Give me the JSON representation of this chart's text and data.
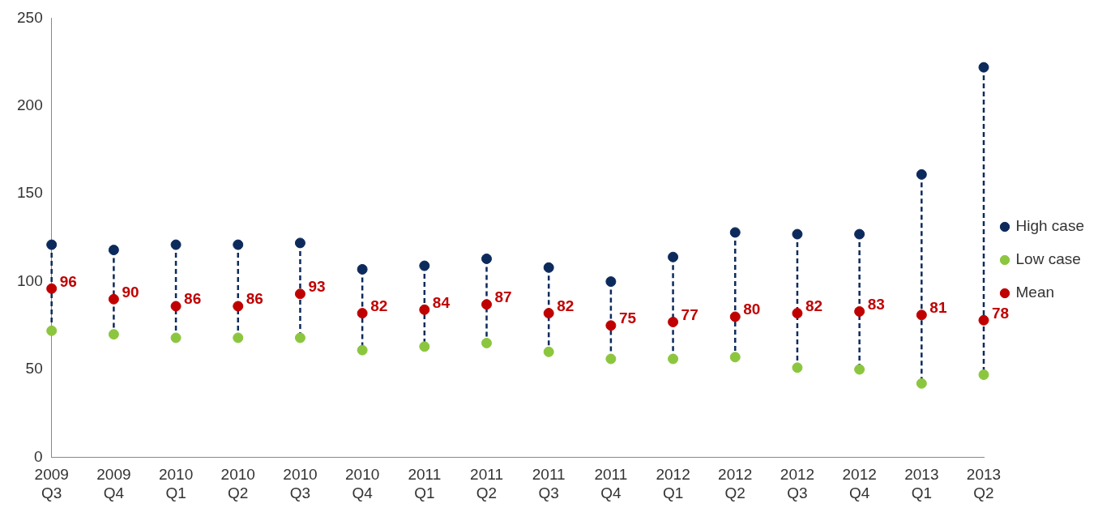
{
  "chart_data": {
    "type": "scatter",
    "categories": [
      "2009 Q3",
      "2009 Q4",
      "2010 Q1",
      "2010 Q2",
      "2010 Q3",
      "2010 Q4",
      "2011 Q1",
      "2011 Q2",
      "2011 Q3",
      "2011 Q4",
      "2012 Q1",
      "2012 Q2",
      "2012 Q3",
      "2012 Q4",
      "2013 Q1",
      "2013 Q2"
    ],
    "series": [
      {
        "name": "High case",
        "color": "#0d2a5c",
        "values": [
          121,
          118,
          121,
          121,
          122,
          107,
          109,
          113,
          108,
          100,
          114,
          128,
          127,
          127,
          161,
          222
        ]
      },
      {
        "name": "Low case",
        "color": "#8cc63f",
        "values": [
          72,
          70,
          68,
          68,
          68,
          61,
          63,
          65,
          60,
          56,
          56,
          57,
          51,
          50,
          42,
          47
        ]
      },
      {
        "name": "Mean",
        "color": "#c00000",
        "values": [
          96,
          90,
          86,
          86,
          93,
          82,
          84,
          87,
          82,
          75,
          77,
          80,
          82,
          83,
          81,
          78
        ],
        "value_labels": [
          "96",
          "90",
          "86",
          "86",
          "93",
          "82",
          "84",
          "87",
          "82",
          "75",
          "77",
          "80",
          "82",
          "83",
          "81",
          "78"
        ]
      }
    ],
    "ylim": [
      0,
      250
    ],
    "yticks": [
      0,
      50,
      100,
      150,
      200,
      250
    ],
    "grid": false,
    "legend": "right",
    "marker": "circle",
    "line_style": "dashed"
  }
}
